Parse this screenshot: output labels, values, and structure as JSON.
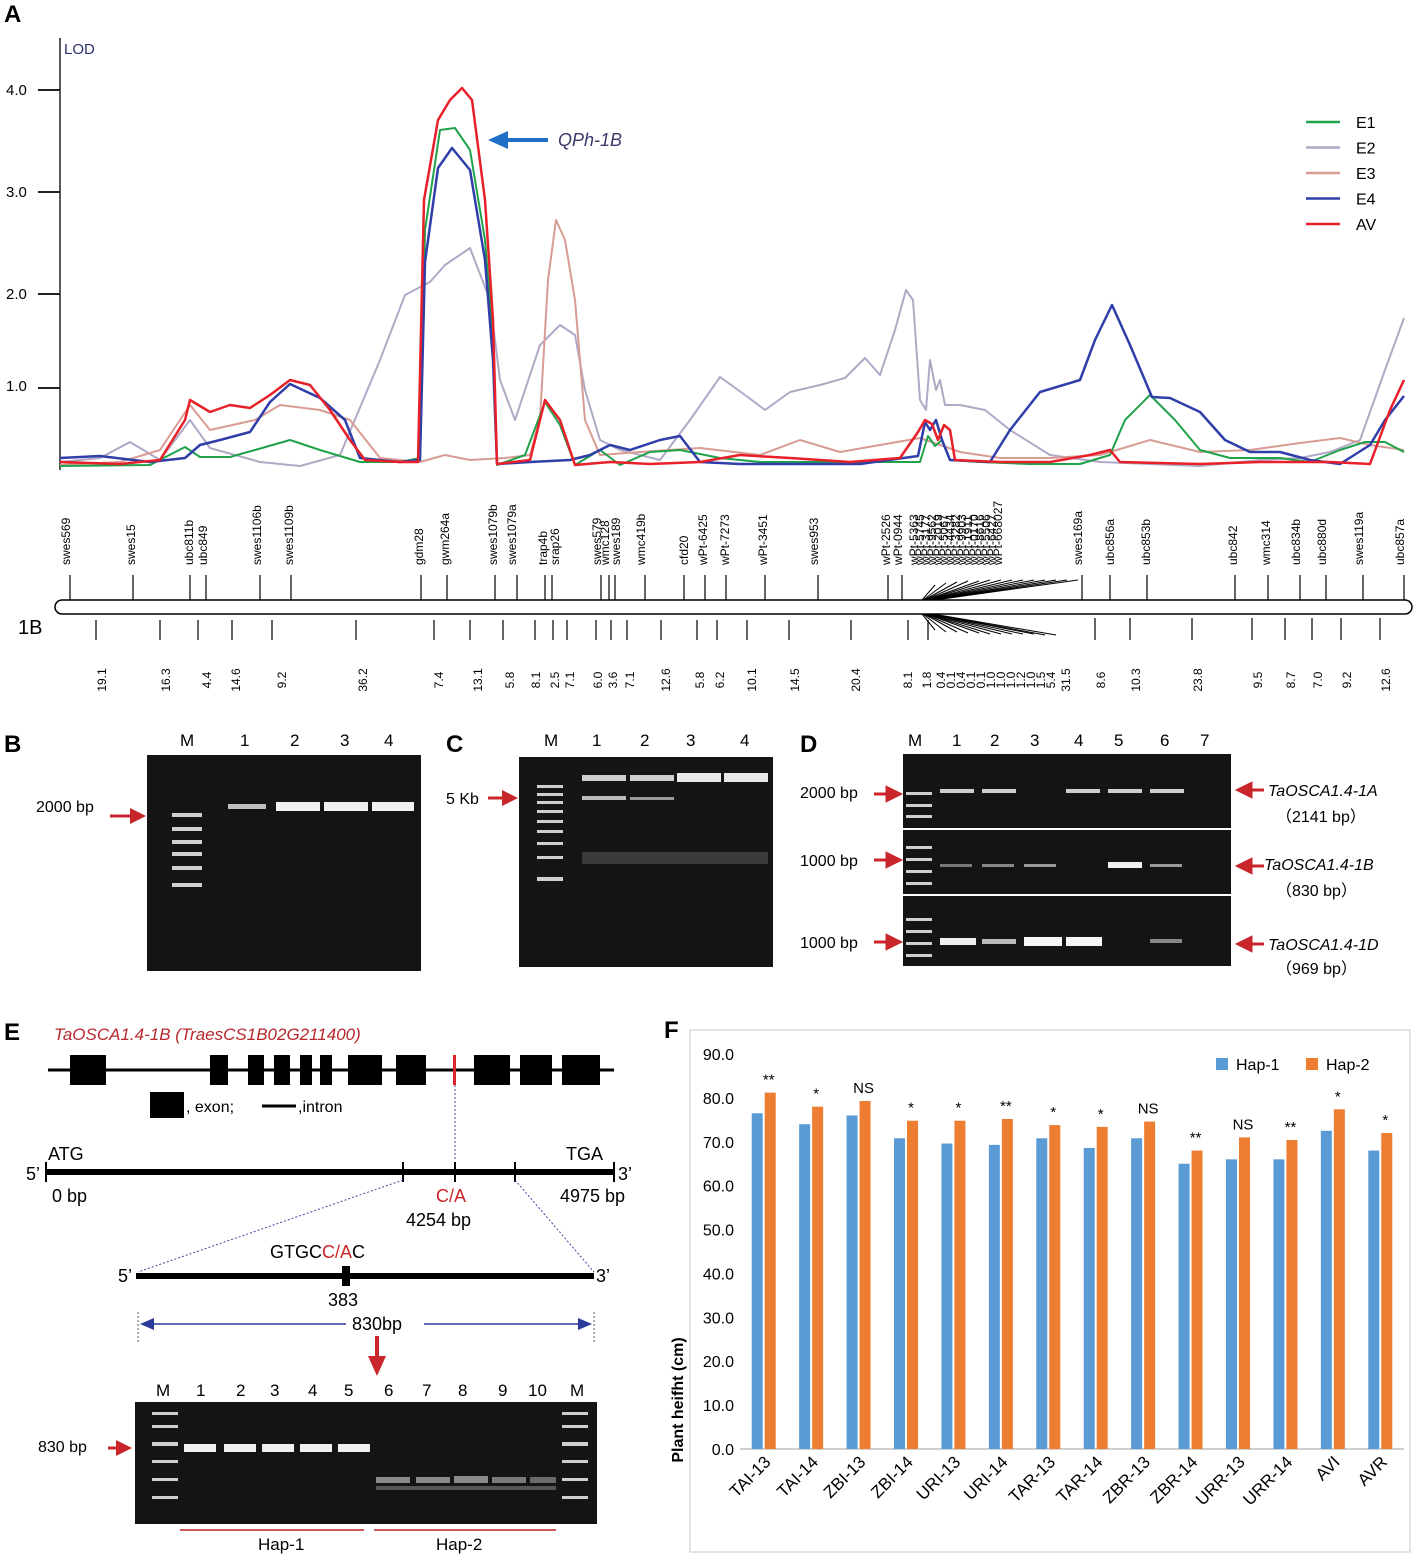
{
  "panelA": {
    "letter": "A",
    "y_axis_label": "LOD",
    "y_ticks": [
      "4.0",
      "3.0",
      "2.0",
      "1.0"
    ],
    "qtl_label": "QPh-1B",
    "legend": [
      {
        "name": "E1",
        "color": "#1fa24a"
      },
      {
        "name": "E2",
        "color": "#b0a9c6"
      },
      {
        "name": "E3",
        "color": "#d89c94"
      },
      {
        "name": "E4",
        "color": "#2f3ea8"
      },
      {
        "name": "AV",
        "color": "#e8202a"
      }
    ],
    "chromosome": "1B",
    "markers": [
      "swes569",
      "swes15",
      "ubc811b",
      "ubc849",
      "swes1106b",
      "swes1109b",
      "gdm28",
      "gwm264a",
      "swes1079b",
      "swes1079a",
      "trap4b",
      "srap26",
      "swes579",
      "wmc128",
      "swes189",
      "wmc419b",
      "cfd20",
      "wPt-6425",
      "wPt-7273",
      "wPt-3451",
      "swes953",
      "wPt-2526",
      "wPt-0944",
      "wPt-5363",
      "wPt-5745",
      "wPt-3177",
      "wPt-9562",
      "wPt-2019",
      "wPt-5067",
      "wPt-4434",
      "wPt-3282",
      "wPt-9903",
      "wPt-1911",
      "wPt-0170",
      "wPt-8616",
      "wPt-5506",
      "wPt-6427",
      "wPt-668027",
      "swes169a",
      "ubc856a",
      "ubc853b",
      "ubc842",
      "wmc314",
      "ubc834b",
      "ubc880d",
      "swes119a",
      "ubc857a"
    ],
    "distances": [
      "19.1",
      "16.3",
      "4.4",
      "14.6",
      "9.2",
      "36.2",
      "7.4",
      "13.1",
      "5.8",
      "8.1",
      "2.5",
      "7.1",
      "6.0",
      "3.6",
      "7.1",
      "12.6",
      "5.8",
      "6.2",
      "10.1",
      "14.5",
      "20.4",
      "8.1",
      "1.8",
      "0.4",
      "0.1",
      "0.4",
      "0.1",
      "0.1",
      "1.0",
      "1.0",
      "1.0",
      "1.2",
      "1.0",
      "1.5",
      "5.4",
      "31.5",
      "8.6",
      "10.3",
      "23.8",
      "9.5",
      "8.7",
      "7.0",
      "9.2",
      "12.6"
    ]
  },
  "panelB": {
    "letter": "B",
    "lanes": [
      "M",
      "1",
      "2",
      "3",
      "4"
    ],
    "size_label": "2000 bp"
  },
  "panelC": {
    "letter": "C",
    "lanes": [
      "M",
      "1",
      "2",
      "3",
      "4"
    ],
    "size_label": "5 Kb"
  },
  "panelD": {
    "letter": "D",
    "lanes": [
      "M",
      "1",
      "2",
      "3",
      "4",
      "5",
      "6",
      "7"
    ],
    "rows": [
      {
        "size": "2000 bp",
        "gene": "TaOSCA1.4-1A",
        "len": "（2141 bp）"
      },
      {
        "size": "1000 bp",
        "gene": "TaOSCA1.4-1B",
        "len": "（830 bp）"
      },
      {
        "size": "1000 bp",
        "gene": "TaOSCA1.4-1D",
        "len": "（969 bp）"
      }
    ]
  },
  "panelE": {
    "letter": "E",
    "gene_title": "TaOSCA1.4-1B (TraesCS1B02G211400)",
    "legend_exon": ", exon;",
    "legend_intron": ",intron",
    "atg": "ATG",
    "tga": "TGA",
    "five": "5’",
    "three": "3’",
    "start_bp": "0 bp",
    "end_bp": "4975 bp",
    "snp": "C/A",
    "snp_pos": "4254 bp",
    "seq_prefix": "GTGC",
    "seq_snp": "C/A",
    "seq_suffix": "C",
    "pos383": "383",
    "amplicon": "830bp",
    "gel_size": "830 bp",
    "lanes": [
      "M",
      "1",
      "2",
      "3",
      "4",
      "5",
      "6",
      "7",
      "8",
      "9",
      "10",
      "M"
    ],
    "hap1": "Hap-1",
    "hap2": "Hap-2"
  },
  "panelF": {
    "letter": "F"
  },
  "chart_data": {
    "type": "bar",
    "title": "",
    "xlabel": "",
    "ylabel": "Plant heifht (cm)",
    "ylim": [
      0,
      90
    ],
    "y_ticks": [
      "0.0",
      "10.0",
      "20.0",
      "30.0",
      "40.0",
      "50.0",
      "60.0",
      "70.0",
      "80.0",
      "90.0"
    ],
    "categories": [
      "TAI-13",
      "TAI-14",
      "ZBI-13",
      "ZBI-14",
      "URI-13",
      "URI-14",
      "TAR-13",
      "TAR-14",
      "ZBR-13",
      "ZBR-14",
      "URR-13",
      "URR-14",
      "AVI",
      "AVR"
    ],
    "series": [
      {
        "name": "Hap-1",
        "color": "#5b9bd5",
        "values": [
          76.5,
          74.0,
          76.0,
          70.8,
          69.6,
          69.3,
          70.8,
          68.6,
          70.8,
          65.0,
          66.0,
          66.0,
          72.5,
          68.0
        ]
      },
      {
        "name": "Hap-2",
        "color": "#ed7d31",
        "values": [
          81.2,
          78.0,
          79.3,
          74.8,
          74.8,
          75.2,
          73.8,
          73.4,
          74.6,
          68.0,
          71.0,
          70.4,
          77.4,
          72.0
        ]
      }
    ],
    "significance": [
      "**",
      "*",
      "NS",
      "*",
      "*",
      "**",
      "*",
      "*",
      "NS",
      "**",
      "NS",
      "**",
      "*",
      "*"
    ],
    "legend_position": "top-right"
  }
}
